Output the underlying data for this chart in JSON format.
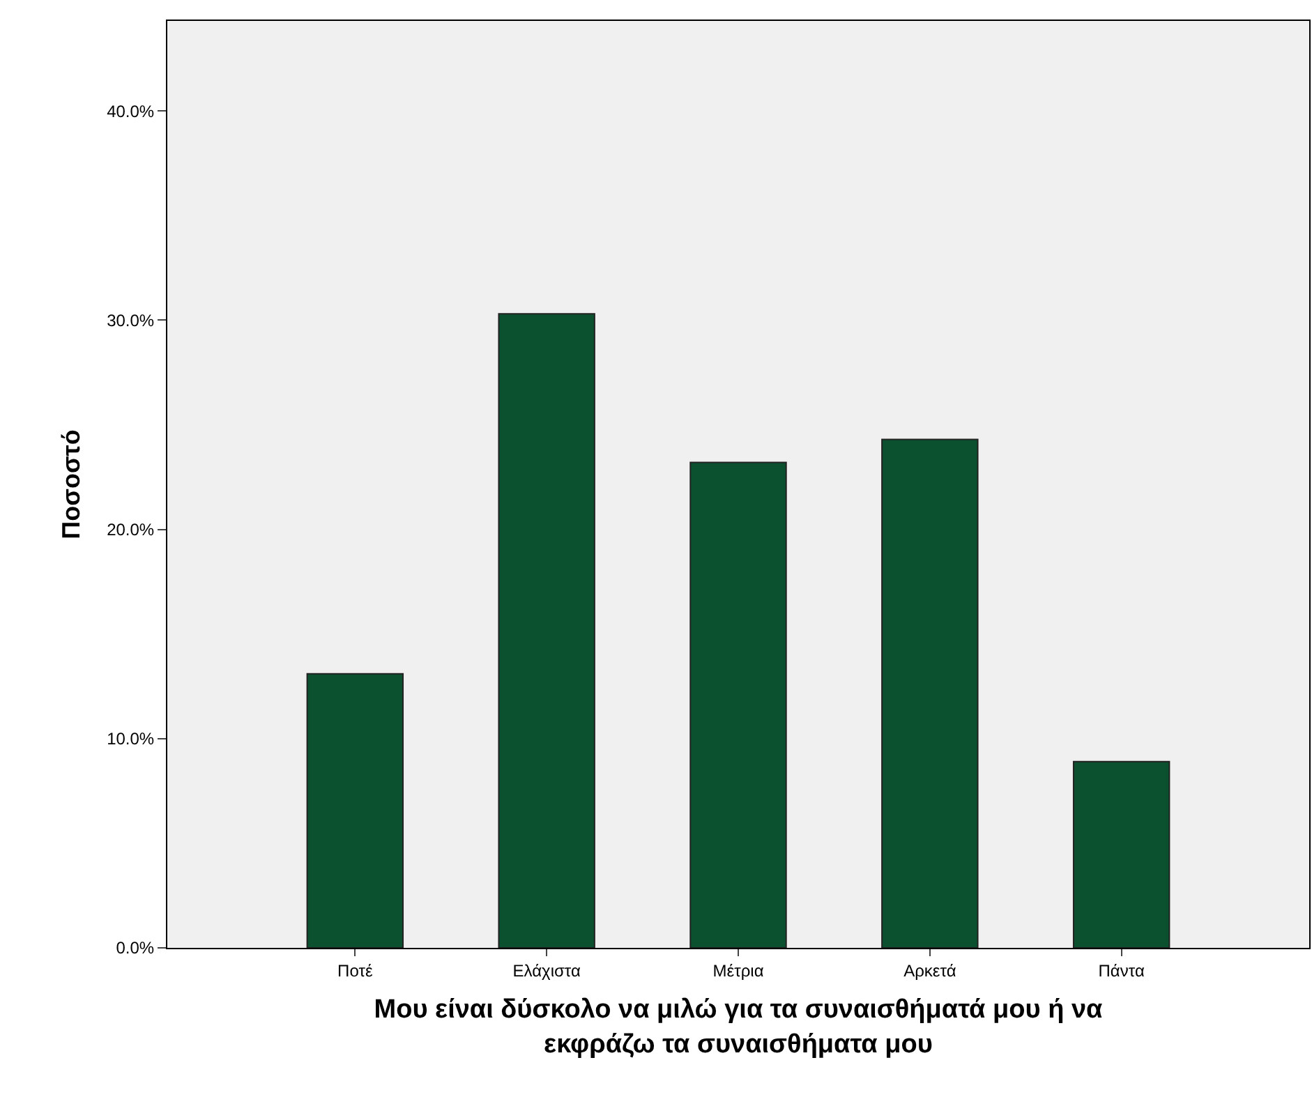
{
  "chart_data": {
    "type": "bar",
    "xlabel": "Μου είναι δύσκολο να μιλώ για τα συναισθήματά μου ή να εκφράζω τα συναισθήματα μου",
    "ylabel": "Ποσοστό",
    "categories": [
      "Ποτέ",
      "Ελάχιστα",
      "Μέτρια",
      "Αρκετά",
      "Πάντα"
    ],
    "values": [
      13.1,
      30.3,
      23.2,
      24.3,
      8.9
    ],
    "color": "#0b5130",
    "yticks": [
      {
        "value": 0,
        "label": "0.0%"
      },
      {
        "value": 10,
        "label": "10.0%"
      },
      {
        "value": 20,
        "label": "20.0%"
      },
      {
        "value": 30,
        "label": "30.0%"
      },
      {
        "value": 40,
        "label": "40.0%"
      }
    ],
    "ylim": [
      0,
      44.3
    ]
  }
}
